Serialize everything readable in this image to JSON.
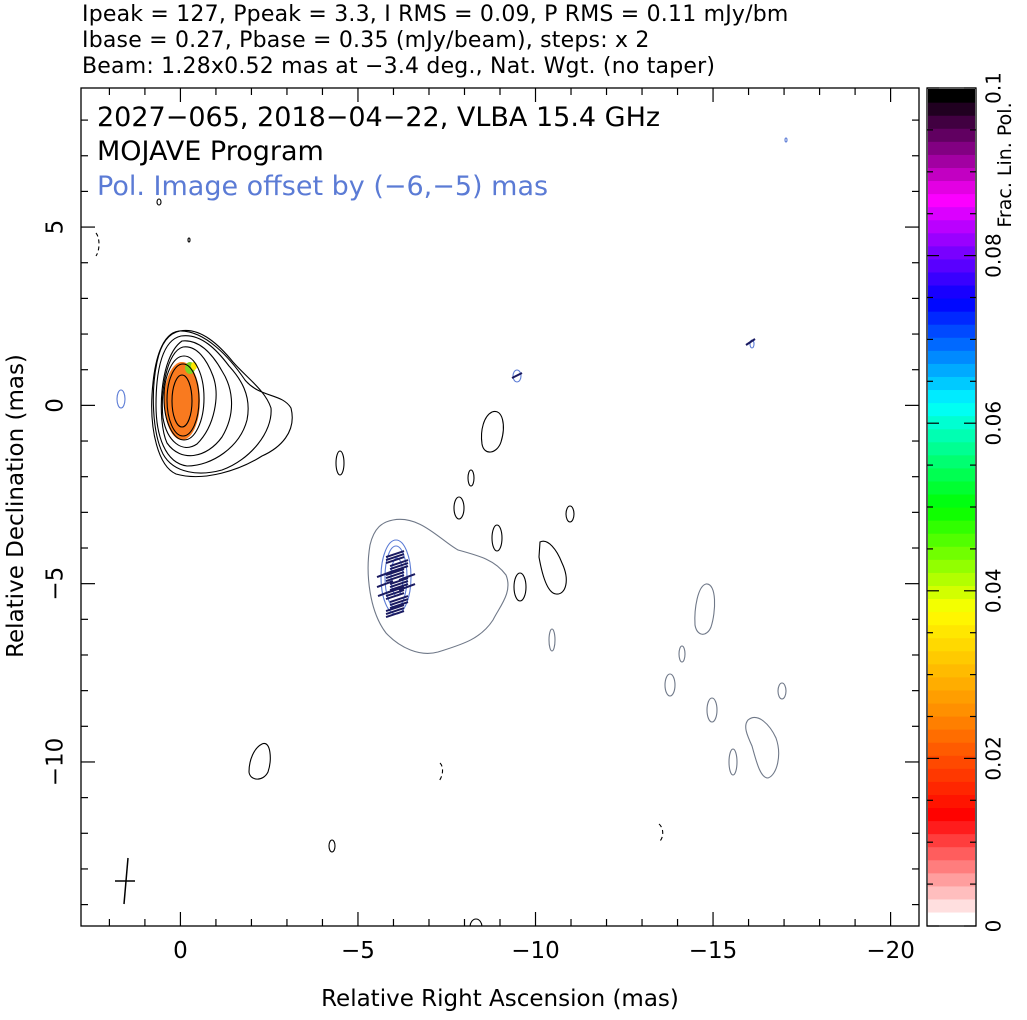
{
  "header": {
    "line1": "Ipeak = 127, Ppeak = 3.3, I RMS = 0.09, P RMS = 0.11 mJy/bm",
    "line2": "Ibase = 0.27, Pbase = 0.35 (mJy/beam), steps: x 2",
    "line3": "Beam: 1.28x0.52 mas at −3.4 deg., Nat. Wgt. (no taper)"
  },
  "chart_data": {
    "type": "contour",
    "title": "2027−065, 2018−04−22, VLBA 15.4 GHz",
    "subtitle": "MOJAVE Program",
    "annotation": "Pol. Image offset by (−6,−5) mas",
    "xlabel": "Relative Right Ascension (mas)",
    "ylabel": "Relative Declination (mas)",
    "xlim": [
      2.8,
      -20.8
    ],
    "ylim": [
      -14.6,
      8.9
    ],
    "x_ticks": [
      0,
      -5,
      -10,
      -15,
      -20
    ],
    "x_tick_labels": [
      "0",
      "−5",
      "−10",
      "−15",
      "−20"
    ],
    "y_ticks": [
      5,
      0,
      -5,
      -10
    ],
    "y_tick_labels": [
      "5",
      "0",
      "−5",
      "−10"
    ],
    "stokes_i_contours": {
      "base_mJy_per_beam": 0.27,
      "step_factor": 2,
      "peak_mJy_per_beam": 127,
      "rms_mJy_per_beam": 0.09
    },
    "polarization": {
      "peak_mJy_per_beam": 3.3,
      "base_mJy_per_beam": 0.35,
      "rms_mJy_per_beam": 0.11,
      "offset_mas": [
        -6,
        -5
      ]
    },
    "beam": {
      "major_mas": 1.28,
      "minor_mas": 0.52,
      "pa_deg": -3.4,
      "weighting": "Nat. Wgt. (no taper)"
    },
    "colorbar": {
      "label": "Frac. Lin. Pol.",
      "range": [
        0,
        0.1
      ],
      "ticks": [
        0,
        0.02,
        0.04,
        0.06,
        0.08,
        0.1
      ],
      "tick_labels": [
        "0",
        "0.02",
        "0.04",
        "0.06",
        "0.08",
        "0.1"
      ],
      "colors": [
        "#ffffff",
        "#ff0000",
        "#ff8c00",
        "#ffff00",
        "#00ff00",
        "#00ffff",
        "#0000ff",
        "#ff00ff",
        "#000000"
      ]
    },
    "core": {
      "x": 0,
      "y": 0,
      "fractional_pol": 0.03,
      "fractional_pol_edge": 0.05
    },
    "jet_features": [
      {
        "x": -6.1,
        "y": -4.9,
        "note": "polarized jet component (shown at offset)"
      }
    ]
  },
  "colors": {
    "i_contour": "#000000",
    "offset_contour": "#6f7888",
    "pol_contour": "#5b7bd5",
    "evpa": "#1a1a60",
    "core_fill": "#f97a1f",
    "text_pol_note": "#5b7bd5"
  }
}
